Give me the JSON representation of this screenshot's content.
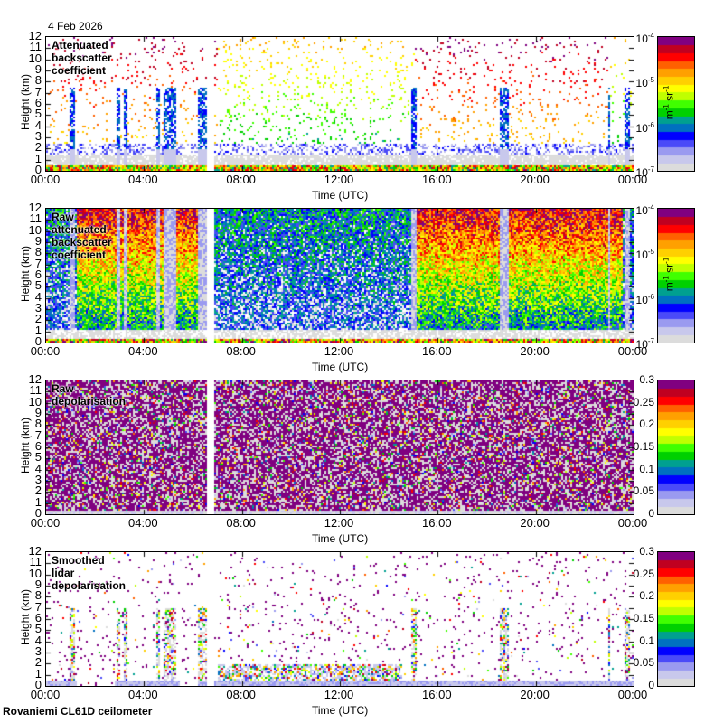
{
  "header": {
    "date": "4 Feb 2026"
  },
  "footer": {
    "site": "Rovaniemi CL61D ceilometer"
  },
  "chart_data": [
    {
      "type": "heatmap",
      "title": "Attenuated backscatter coefficient",
      "xlabel": "Time (UTC)",
      "ylabel": "Height (km)",
      "x_ticks": [
        "00:00",
        "04:00",
        "08:00",
        "12:00",
        "16:00",
        "20:00",
        "00:00"
      ],
      "y_ticks": [
        "0",
        "1",
        "2",
        "3",
        "4",
        "5",
        "6",
        "7",
        "8",
        "9",
        "10",
        "11",
        "12"
      ],
      "ylim": [
        0,
        12
      ],
      "xlim_hours": [
        0,
        24
      ],
      "colorbar": {
        "scale": "log",
        "ticks": [
          "10-7",
          "10-6",
          "10-5",
          "10-4"
        ],
        "range": [
          1e-07,
          0.0001
        ],
        "unit": "m-1 sr-1"
      },
      "pattern": "filtered"
    },
    {
      "type": "heatmap",
      "title": "Raw attenuated backscatter coefficient",
      "xlabel": "Time (UTC)",
      "ylabel": "Height (km)",
      "x_ticks": [
        "00:00",
        "04:00",
        "08:00",
        "12:00",
        "16:00",
        "20:00",
        "00:00"
      ],
      "y_ticks": [
        "0",
        "1",
        "2",
        "3",
        "4",
        "5",
        "6",
        "7",
        "8",
        "9",
        "10",
        "11",
        "12"
      ],
      "ylim": [
        0,
        12
      ],
      "xlim_hours": [
        0,
        24
      ],
      "colorbar": {
        "scale": "log",
        "ticks": [
          "10-7",
          "10-6",
          "10-5",
          "10-4"
        ],
        "range": [
          1e-07,
          0.0001
        ],
        "unit": "m-1 sr-1"
      },
      "pattern": "raw"
    },
    {
      "type": "heatmap",
      "title": "Raw depolarisation",
      "xlabel": "Time (UTC)",
      "ylabel": "Height (km)",
      "x_ticks": [
        "00:00",
        "04:00",
        "08:00",
        "12:00",
        "16:00",
        "20:00",
        "00:00"
      ],
      "y_ticks": [
        "0",
        "1",
        "2",
        "3",
        "4",
        "5",
        "6",
        "7",
        "8",
        "9",
        "10",
        "11",
        "12"
      ],
      "ylim": [
        0,
        12
      ],
      "xlim_hours": [
        0,
        24
      ],
      "colorbar": {
        "scale": "linear",
        "ticks": [
          "0",
          "0.05",
          "0.1",
          "0.15",
          "0.2",
          "0.25",
          "0.3"
        ],
        "range": [
          0,
          0.3
        ],
        "unit": ""
      },
      "pattern": "rawdep"
    },
    {
      "type": "heatmap",
      "title": "Smoothed lidar depolarisation",
      "xlabel": "Time (UTC)",
      "ylabel": "Height (km)",
      "x_ticks": [
        "00:00",
        "04:00",
        "08:00",
        "12:00",
        "16:00",
        "20:00",
        "00:00"
      ],
      "y_ticks": [
        "0",
        "1",
        "2",
        "3",
        "4",
        "5",
        "6",
        "7",
        "8",
        "9",
        "10",
        "11",
        "12"
      ],
      "ylim": [
        0,
        12
      ],
      "xlim_hours": [
        0,
        24
      ],
      "colorbar": {
        "scale": "linear",
        "ticks": [
          "0",
          "0.05",
          "0.1",
          "0.15",
          "0.2",
          "0.25",
          "0.3"
        ],
        "range": [
          0,
          0.3
        ],
        "unit": ""
      },
      "pattern": "smoothdep"
    }
  ],
  "colormap": [
    "#dcdcdc",
    "#c8c8ec",
    "#9a9af0",
    "#4a4af8",
    "#0000ff",
    "#0070c0",
    "#00a090",
    "#00d000",
    "#40ff00",
    "#c0ff00",
    "#ffff00",
    "#ffd000",
    "#ffa000",
    "#ff6000",
    "#ff0000",
    "#c00020",
    "#800080"
  ]
}
